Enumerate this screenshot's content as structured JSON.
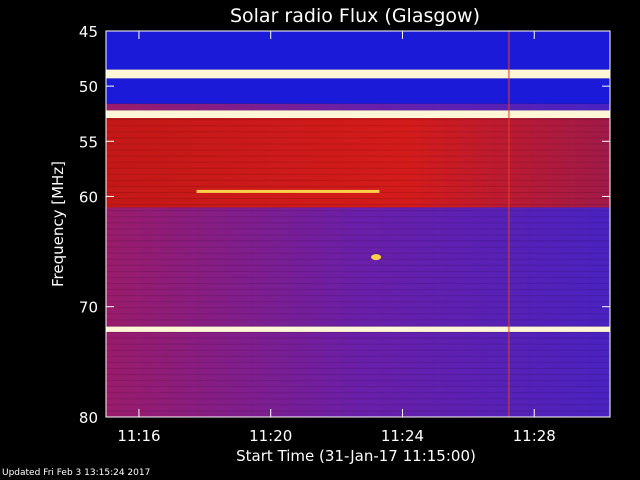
{
  "chart_data": {
    "type": "heatmap",
    "title": "Solar radio Flux (Glasgow)",
    "xlabel": "Start Time (31-Jan-17 11:15:00)",
    "ylabel": "Frequency [MHz]",
    "x_ticks": [
      "11:16",
      "11:20",
      "11:24",
      "11:28"
    ],
    "x_tick_minutes": [
      16,
      20,
      24,
      28
    ],
    "xlim_minutes": [
      15.0,
      30.3
    ],
    "y_ticks": [
      45,
      50,
      55,
      60,
      70,
      80
    ],
    "ylim": [
      45,
      80
    ],
    "colors": {
      "background": "#000000",
      "low": "#1a1ad8",
      "mid": "#6b1fa6",
      "high": "#d51a1a",
      "peak": "#ffd04a",
      "white_band": "#fff6d8"
    },
    "bands_mhz": [
      {
        "from": 45.0,
        "to": 48.5,
        "level": "low"
      },
      {
        "from": 48.5,
        "to": 49.3,
        "level": "white_band"
      },
      {
        "from": 49.3,
        "to": 51.6,
        "level": "low"
      },
      {
        "from": 51.6,
        "to": 52.2,
        "level": "mid"
      },
      {
        "from": 52.2,
        "to": 52.9,
        "level": "white_band"
      },
      {
        "from": 52.9,
        "to": 61.0,
        "level": "high"
      },
      {
        "from": 61.0,
        "to": 64.0,
        "level": "mid"
      },
      {
        "from": 64.0,
        "to": 71.8,
        "level": "mid"
      },
      {
        "from": 71.8,
        "to": 72.3,
        "level": "white_band"
      },
      {
        "from": 72.3,
        "to": 80.0,
        "level": "mid"
      }
    ],
    "features": [
      {
        "type": "hline",
        "freq_mhz": 59.5,
        "from_min": 17.75,
        "to_min": 23.3,
        "level": "peak"
      },
      {
        "type": "burst",
        "freq_mhz": 65.5,
        "at_min": 23.2,
        "level": "peak"
      },
      {
        "type": "vline",
        "at_min": 27.2,
        "level": "high"
      }
    ]
  },
  "footer": {
    "updated": "Updated Fri Feb  3 13:15:24 2017"
  }
}
